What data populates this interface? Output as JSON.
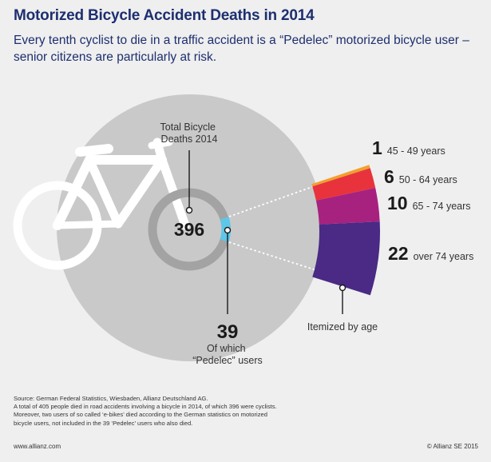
{
  "header": {
    "title": "Motorized Bicycle Accident Deaths in 2014",
    "subtitle": "Every tenth cyclist to die in a traffic accident is a “Pedelec” motorized bicycle user – senior citizens are particularly at risk."
  },
  "chart_data": {
    "type": "pie",
    "total": {
      "value": 396,
      "label": "Total Bicycle Deaths 2014"
    },
    "pedelec": {
      "value": 39,
      "label_line1": "Of which",
      "label_line2": "“Pedelec” users"
    },
    "breakdown_label": "Itemized by age",
    "age_groups": [
      {
        "value": 1,
        "label": "45 - 49 years",
        "color": "#f2a02b"
      },
      {
        "value": 6,
        "label": "50 - 64 years",
        "color": "#e8333d"
      },
      {
        "value": 10,
        "label": "65 - 74 years",
        "color": "#a7227f"
      },
      {
        "value": 22,
        "label": "over 74 years",
        "color": "#4a2a85"
      }
    ],
    "colors": {
      "big_circle": "#c9c9c9",
      "ring": "#a3a3a3",
      "pedelec_slice": "#5fc6e8",
      "bicycle": "#ffffff"
    }
  },
  "footer": {
    "source_lines": [
      "Source: German Federal Statistics, Wiesbaden, Allianz Deutschland AG.",
      "A total of 405 people died in road accidents involving a bicycle in 2014, of which 396 were cyclists.",
      "Moreover, two users of so called ‘e-bikes’ died according to the German statistics on motorized",
      "bicycle users,  not included in the 39 ‘Pedelec’ users who also died."
    ],
    "website": "www.allianz.com",
    "copyright": "© Allianz SE 2015"
  }
}
